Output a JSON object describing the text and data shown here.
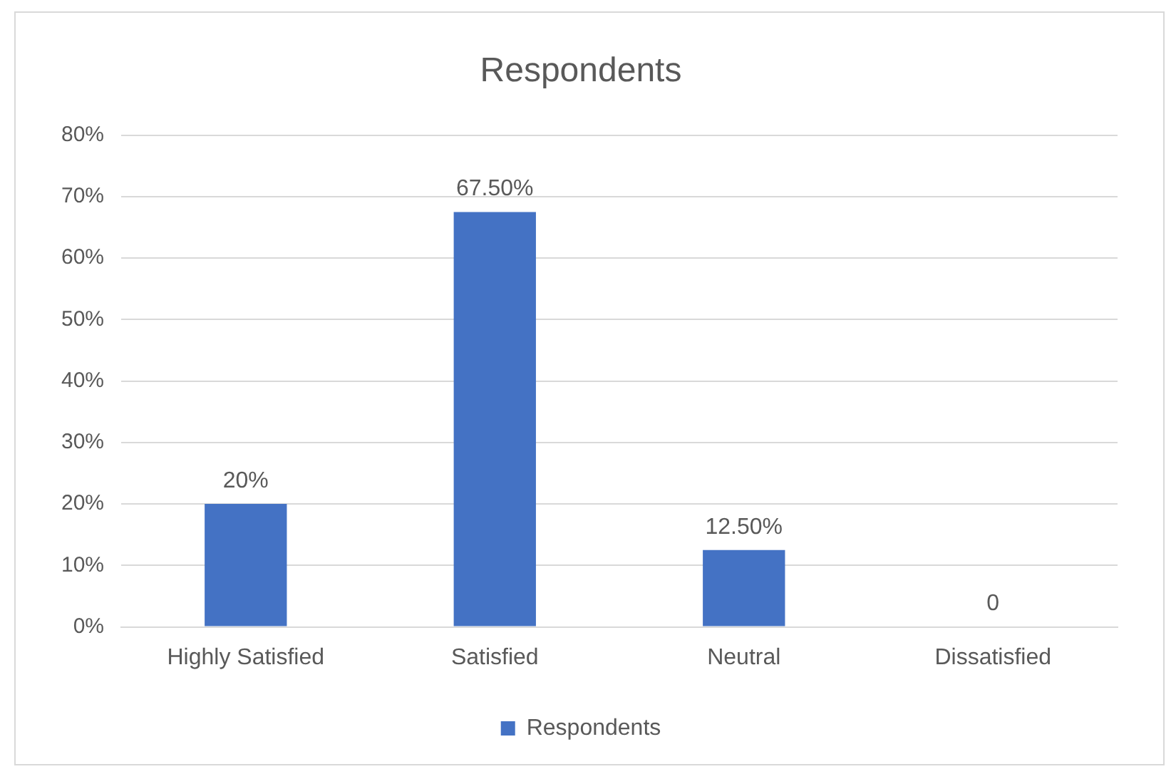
{
  "chart_data": {
    "type": "bar",
    "title": "Respondents",
    "categories": [
      "Highly Satisfied",
      "Satisfied",
      "Neutral",
      "Dissatisfied"
    ],
    "series": [
      {
        "name": "Respondents",
        "color": "#4472c4",
        "values": [
          20,
          67.5,
          12.5,
          0
        ],
        "value_labels": [
          "20%",
          "67.50%",
          "12.50%",
          "0"
        ]
      }
    ],
    "ylim": [
      0,
      80
    ],
    "yticks": [
      {
        "value": 0,
        "label": "0%"
      },
      {
        "value": 10,
        "label": "10%"
      },
      {
        "value": 20,
        "label": "20%"
      },
      {
        "value": 30,
        "label": "30%"
      },
      {
        "value": 40,
        "label": "40%"
      },
      {
        "value": 50,
        "label": "50%"
      },
      {
        "value": 60,
        "label": "60%"
      },
      {
        "value": 70,
        "label": "70%"
      },
      {
        "value": 80,
        "label": "80%"
      }
    ],
    "grid": "y",
    "legend": "bottom"
  }
}
